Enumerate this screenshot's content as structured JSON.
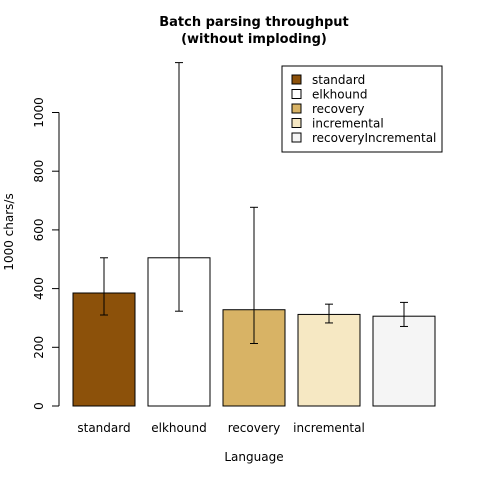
{
  "chart_data": {
    "type": "bar",
    "title": "Batch parsing throughput",
    "subtitle": "(without imploding)",
    "xlabel": "Language",
    "ylabel": "1000 chars/s",
    "ylim": [
      0,
      1100
    ],
    "yticks": [
      0,
      200,
      400,
      600,
      800,
      1000
    ],
    "categories": [
      "standard",
      "elkhound",
      "recovery",
      "incremental",
      "recoveryIncremental"
    ],
    "visible_tick_labels": [
      "standard",
      "elkhound",
      "recovery",
      "incremental",
      ""
    ],
    "values": [
      385,
      505,
      328,
      312,
      306
    ],
    "errors": [
      {
        "low": 310,
        "high": 505
      },
      {
        "low": 323,
        "high": 1170
      },
      {
        "low": 213,
        "high": 677
      },
      {
        "low": 283,
        "high": 347
      },
      {
        "low": 271,
        "high": 353
      }
    ],
    "colors": [
      "#8c510a",
      "#ffffff",
      "#d8b365",
      "#f6e8c3",
      "#f5f5f5"
    ],
    "legend": {
      "position": "top-right",
      "entries": [
        "standard",
        "elkhound",
        "recovery",
        "incremental",
        "recoveryIncremental"
      ]
    },
    "grid": false
  }
}
